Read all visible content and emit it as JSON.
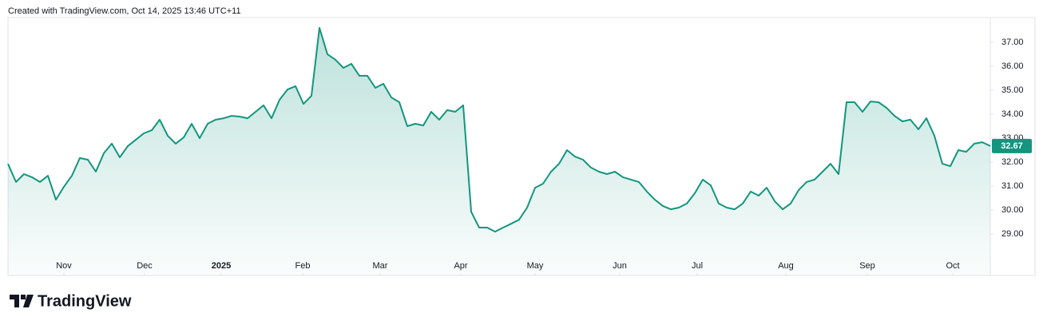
{
  "chart_data": {
    "type": "area",
    "title": "Created with TradingView.com, Oct 14, 2025 13:46 UTC+11",
    "logo_text": "TradingView",
    "series": [
      {
        "color": "#13957f",
        "values": [
          31.93,
          31.17,
          31.5,
          31.37,
          31.17,
          31.43,
          30.43,
          30.97,
          31.43,
          32.17,
          32.1,
          31.6,
          32.37,
          32.77,
          32.2,
          32.67,
          32.93,
          33.2,
          33.33,
          33.77,
          33.1,
          32.77,
          33.03,
          33.6,
          33.0,
          33.6,
          33.77,
          33.83,
          33.93,
          33.9,
          33.83,
          34.1,
          34.37,
          33.83,
          34.6,
          35.03,
          35.17,
          34.43,
          34.77,
          37.6,
          36.5,
          36.27,
          35.93,
          36.1,
          35.6,
          35.6,
          35.1,
          35.27,
          34.7,
          34.5,
          33.5,
          33.6,
          33.53,
          34.1,
          33.77,
          34.17,
          34.1,
          34.37,
          29.93,
          29.27,
          29.27,
          29.1,
          29.27,
          29.43,
          29.6,
          30.1,
          30.93,
          31.1,
          31.6,
          31.93,
          32.5,
          32.23,
          32.1,
          31.77,
          31.6,
          31.5,
          31.6,
          31.37,
          31.27,
          31.17,
          30.77,
          30.43,
          30.17,
          30.03,
          30.1,
          30.27,
          30.7,
          31.27,
          31.03,
          30.27,
          30.1,
          30.03,
          30.27,
          30.77,
          30.6,
          30.93,
          30.37,
          30.03,
          30.27,
          30.83,
          31.17,
          31.27,
          31.6,
          31.93,
          31.5,
          34.5,
          34.5,
          34.1,
          34.53,
          34.5,
          34.27,
          33.93,
          33.7,
          33.77,
          33.37,
          33.83,
          33.1,
          31.93,
          31.83,
          32.5,
          32.43,
          32.77,
          32.83,
          32.67
        ]
      }
    ],
    "xlim": [
      0,
      123
    ],
    "xticks": [
      {
        "value": 7,
        "label": "Nov"
      },
      {
        "value": 17.1,
        "label": "Dec"
      },
      {
        "value": 26.7,
        "label": "2025"
      },
      {
        "value": 36.9,
        "label": "Feb"
      },
      {
        "value": 46.6,
        "label": "Mar"
      },
      {
        "value": 56.7,
        "label": "Apr"
      },
      {
        "value": 66,
        "label": "May"
      },
      {
        "value": 76.6,
        "label": "Jun"
      },
      {
        "value": 86.3,
        "label": "Jul"
      },
      {
        "value": 97.4,
        "label": "Aug"
      },
      {
        "value": 107.6,
        "label": "Sep"
      },
      {
        "value": 118.3,
        "label": "Oct"
      }
    ],
    "ylim": [
      27.27,
      38.03
    ],
    "yticks": [
      {
        "value": 29,
        "label": "29.00"
      },
      {
        "value": 30,
        "label": "30.00"
      },
      {
        "value": 31,
        "label": "31.00"
      },
      {
        "value": 32,
        "label": "32.00"
      },
      {
        "value": 33,
        "label": "33.00"
      },
      {
        "value": 34,
        "label": "34.00"
      },
      {
        "value": 35,
        "label": "35.00"
      },
      {
        "value": 36,
        "label": "36.00"
      },
      {
        "value": 37,
        "label": "37.00"
      }
    ],
    "grid": false
  }
}
